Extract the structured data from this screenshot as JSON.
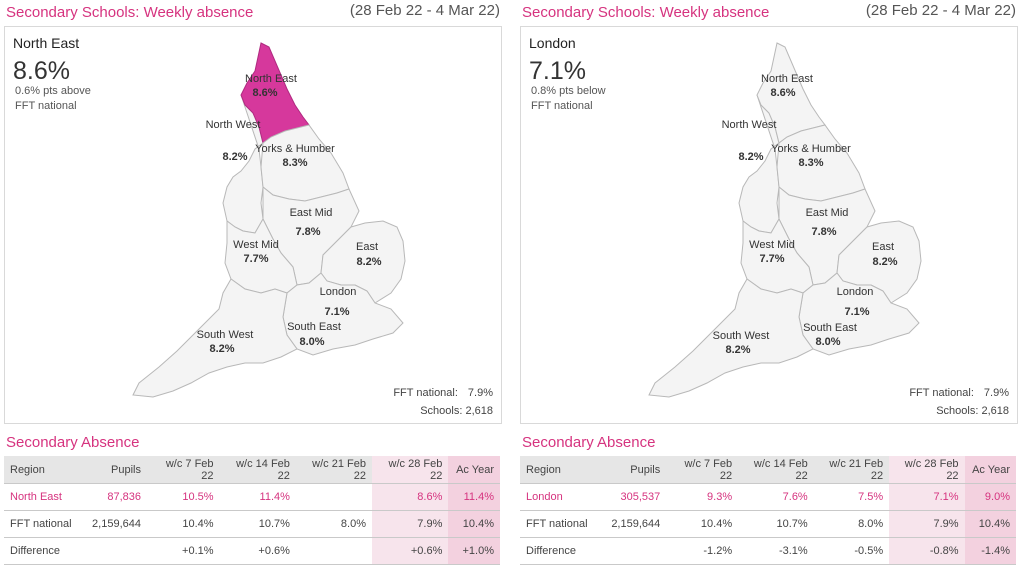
{
  "panels": [
    {
      "title": "Secondary Schools: Weekly absence",
      "dates": "(28 Feb 22 - 4 Mar 22)",
      "selected": {
        "name": "North East",
        "value": "8.6%",
        "comparison_line1": "0.6% pts above",
        "comparison_line2": "FFT national"
      },
      "footer": {
        "fft_label": "FFT national:",
        "fft_value": "7.9%",
        "schools_label": "Schools:",
        "schools_value": "2,618"
      },
      "table": {
        "title": "Secondary Absence",
        "headers": [
          "Region",
          "Pupils",
          "w/c 7 Feb 22",
          "w/c 14 Feb 22",
          "w/c 21 Feb 22",
          "w/c 28 Feb 22",
          "Ac Year"
        ],
        "rows": [
          [
            "North East",
            "87,836",
            "10.5%",
            "11.4%",
            "",
            "8.6%",
            "11.4%"
          ],
          [
            "FFT national",
            "2,159,644",
            "10.4%",
            "10.7%",
            "8.0%",
            "7.9%",
            "10.4%"
          ],
          [
            "Difference",
            "",
            "+0.1%",
            "+0.6%",
            "",
            "+0.6%",
            "+1.0%"
          ]
        ]
      }
    },
    {
      "title": "Secondary Schools: Weekly absence",
      "dates": "(28 Feb 22 - 4 Mar 22)",
      "selected": {
        "name": "London",
        "value": "7.1%",
        "comparison_line1": "0.8% pts below",
        "comparison_line2": "FFT national"
      },
      "footer": {
        "fft_label": "FFT national:",
        "fft_value": "7.9%",
        "schools_label": "Schools:",
        "schools_value": "2,618"
      },
      "table": {
        "title": "Secondary Absence",
        "headers": [
          "Region",
          "Pupils",
          "w/c 7 Feb 22",
          "w/c 14 Feb 22",
          "w/c 21 Feb 22",
          "w/c 28 Feb 22",
          "Ac Year"
        ],
        "rows": [
          [
            "London",
            "305,537",
            "9.3%",
            "7.6%",
            "7.5%",
            "7.1%",
            "9.0%"
          ],
          [
            "FFT national",
            "2,159,644",
            "10.4%",
            "10.7%",
            "8.0%",
            "7.9%",
            "10.4%"
          ],
          [
            "Difference",
            "",
            "-1.2%",
            "-3.1%",
            "-0.5%",
            "-0.8%",
            "-1.4%"
          ]
        ]
      }
    }
  ],
  "chart_data": [
    {
      "type": "choropleth-map",
      "title": "Secondary Schools: Weekly absence",
      "highlighted_region": "North East",
      "highlight_color": "#d6389c",
      "regions": [
        {
          "name": "North East",
          "value": "8.6%"
        },
        {
          "name": "North West",
          "value": "8.2%"
        },
        {
          "name": "Yorks & Humber",
          "value": "8.3%"
        },
        {
          "name": "East Mid",
          "value": "7.8%"
        },
        {
          "name": "West Mid",
          "value": "7.7%"
        },
        {
          "name": "East",
          "value": "8.2%"
        },
        {
          "name": "London",
          "value": "7.1%"
        },
        {
          "name": "South East",
          "value": "8.0%"
        },
        {
          "name": "South West",
          "value": "8.2%"
        }
      ]
    },
    {
      "type": "choropleth-map",
      "title": "Secondary Schools: Weekly absence",
      "highlighted_region": "London",
      "highlight_color": "#d6389c",
      "regions": [
        {
          "name": "North East",
          "value": "8.6%"
        },
        {
          "name": "North West",
          "value": "8.2%"
        },
        {
          "name": "Yorks & Humber",
          "value": "8.3%"
        },
        {
          "name": "East Mid",
          "value": "7.8%"
        },
        {
          "name": "West Mid",
          "value": "7.7%"
        },
        {
          "name": "East",
          "value": "8.2%"
        },
        {
          "name": "London",
          "value": "7.1%"
        },
        {
          "name": "South East",
          "value": "8.0%"
        },
        {
          "name": "South West",
          "value": "8.2%"
        }
      ]
    }
  ]
}
